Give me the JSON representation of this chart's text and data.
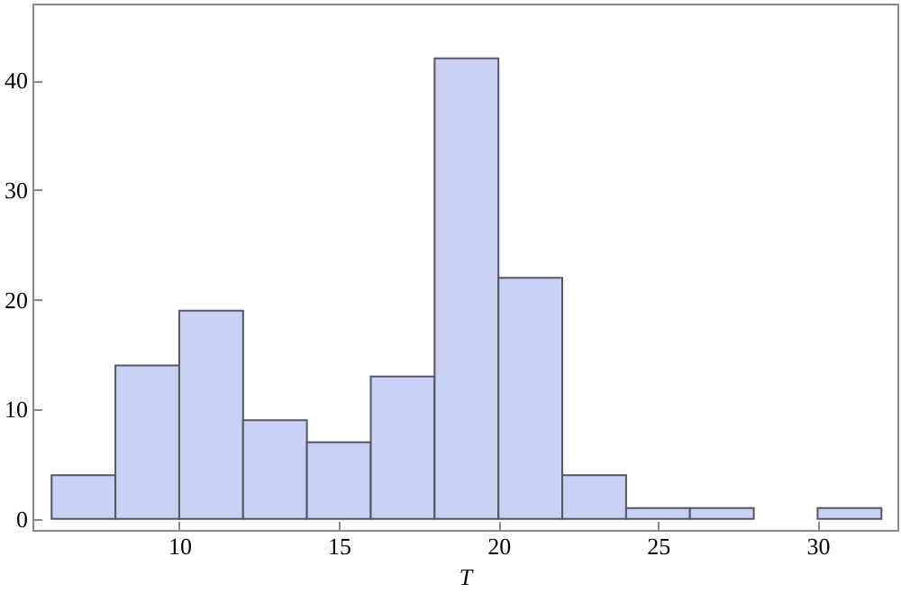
{
  "chart_data": {
    "type": "histogram",
    "xlabel": "T",
    "bins": [
      6,
      8,
      10,
      12,
      14,
      16,
      18,
      20,
      22,
      24,
      26,
      28,
      30,
      32
    ],
    "values": [
      4,
      14,
      19,
      9,
      7,
      13,
      42,
      22,
      4,
      1,
      1,
      0,
      1
    ],
    "color": "#c8d0f3",
    "xlim": [
      5.4,
      32.5
    ],
    "ylim": [
      -1,
      47
    ],
    "xticks": [
      10,
      15,
      20,
      25,
      30
    ],
    "yticks": [
      0,
      10,
      20,
      30,
      40
    ],
    "grid": false
  }
}
